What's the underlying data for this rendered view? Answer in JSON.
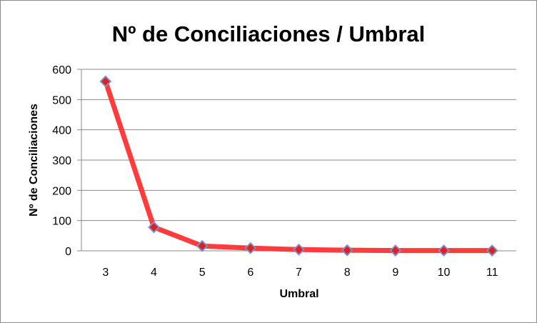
{
  "chart_data": {
    "type": "line",
    "title": "Nº de Conciliaciones / Umbral",
    "xlabel": "Umbral",
    "ylabel": "Nº de Conciliaciones",
    "categories": [
      "3",
      "4",
      "5",
      "6",
      "7",
      "8",
      "9",
      "10",
      "11"
    ],
    "y_ticks": [
      "0",
      "100",
      "200",
      "300",
      "400",
      "500",
      "600"
    ],
    "ylim": [
      0,
      600
    ],
    "grid": true,
    "legend": "none",
    "series": [
      {
        "values": [
          560,
          78,
          16,
          9,
          4,
          2,
          1,
          1,
          1
        ]
      }
    ],
    "colors": {
      "line": "#ff3b3b",
      "marker_fill": "#e0201c",
      "marker_stroke": "#7b8fc9",
      "grid": "#888888"
    }
  }
}
